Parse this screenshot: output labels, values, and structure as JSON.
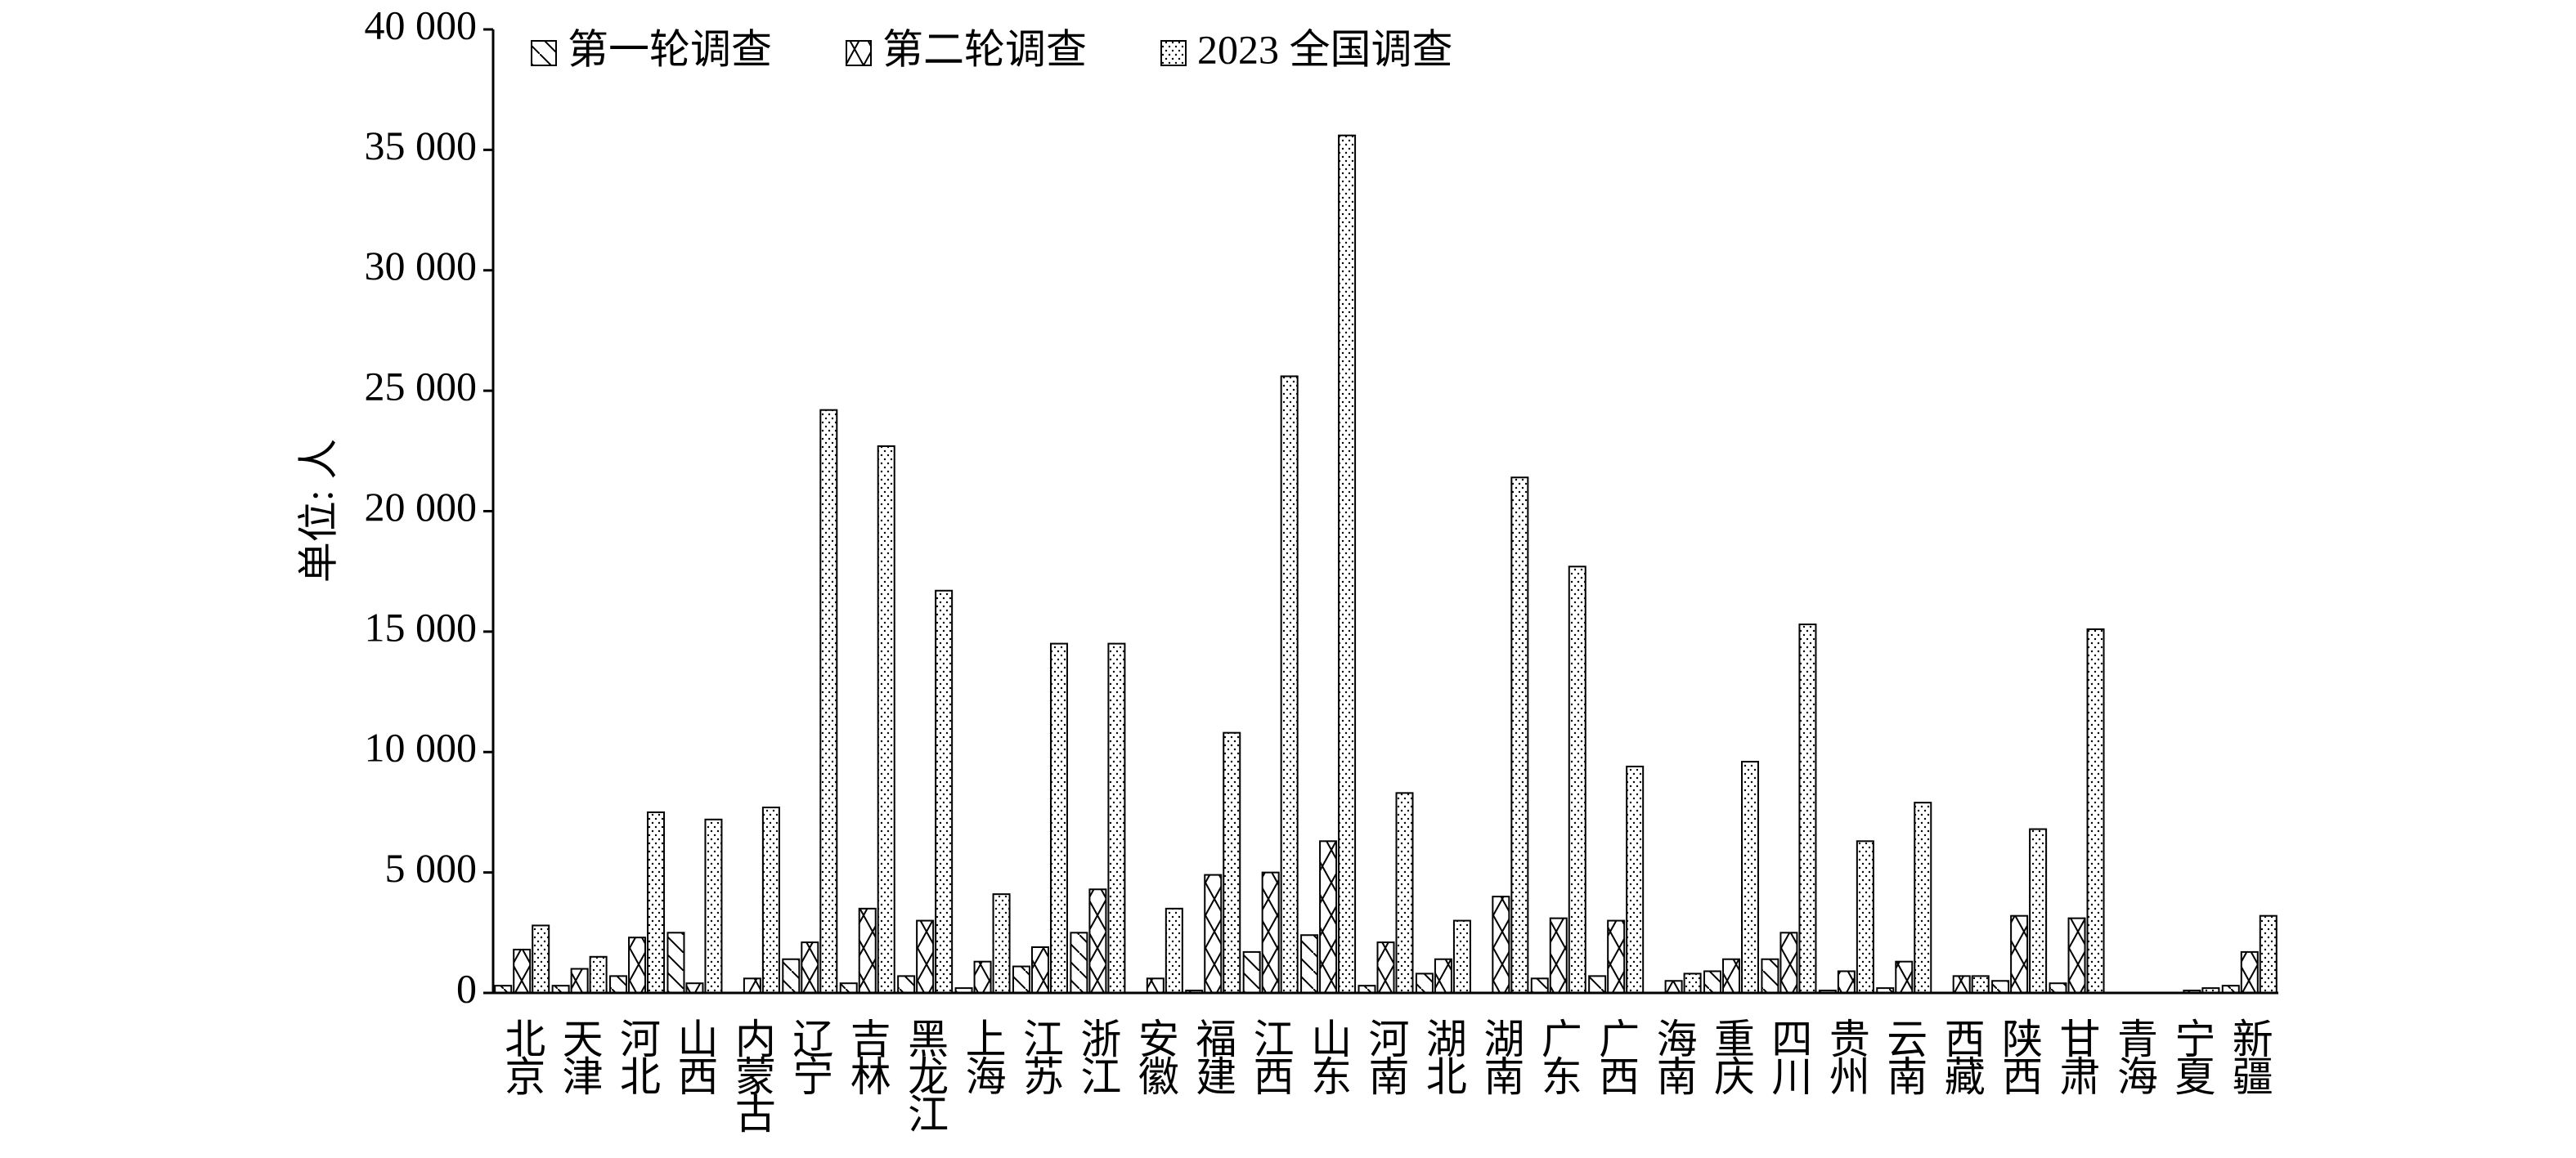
{
  "chart_data": {
    "type": "bar",
    "ylabel": "单位: 人",
    "categories": [
      "北京",
      "天津",
      "河北",
      "山西",
      "内蒙古",
      "辽宁",
      "吉林",
      "黑龙江",
      "上海",
      "江苏",
      "浙江",
      "安徽",
      "福建",
      "江西",
      "山东",
      "河南",
      "湖北",
      "湖南",
      "广东",
      "广西",
      "海南",
      "重庆",
      "四川",
      "贵州",
      "云南",
      "西藏",
      "陕西",
      "甘肃",
      "青海",
      "宁夏",
      "新疆"
    ],
    "series": [
      {
        "name": "第一轮调查",
        "color": "#000000",
        "pattern": "diagonal",
        "values": [
          300,
          300,
          700,
          2500,
          0,
          1400,
          400,
          700,
          200,
          1100,
          2500,
          0,
          100,
          1700,
          2400,
          300,
          800,
          0,
          600,
          700,
          0,
          900,
          1400,
          100,
          200,
          0,
          500,
          400,
          0,
          0,
          300
        ]
      },
      {
        "name": "第二轮调查",
        "color": "#000000",
        "pattern": "cross",
        "values": [
          1800,
          1000,
          2300,
          400,
          600,
          2100,
          3500,
          3000,
          1300,
          1900,
          4300,
          600,
          4900,
          5000,
          6300,
          2100,
          1400,
          4000,
          3100,
          3000,
          500,
          1400,
          2500,
          900,
          1300,
          700,
          3200,
          3100,
          0,
          100,
          1700
        ]
      },
      {
        "name": "2023 全国调查",
        "color": "#000000",
        "pattern": "dots",
        "values": [
          2800,
          1500,
          7500,
          7200,
          7700,
          24200,
          22700,
          16700,
          4100,
          14500,
          14500,
          3500,
          10800,
          25600,
          35600,
          8300,
          3000,
          21400,
          17700,
          9400,
          800,
          9600,
          15300,
          6300,
          7900,
          700,
          6800,
          15100,
          0,
          200,
          3200
        ]
      }
    ],
    "ylim": [
      0,
      40000
    ],
    "yticks": [
      0,
      {
        "value": 5000,
        "label": "5 000"
      },
      {
        "value": 10000,
        "label": "10 000"
      },
      {
        "value": 15000,
        "label": "15 000"
      },
      {
        "value": 20000,
        "label": "20 000"
      },
      {
        "value": 25000,
        "label": "25 000"
      },
      {
        "value": 30000,
        "label": "30 000"
      },
      {
        "value": 35000,
        "label": "35 000"
      },
      {
        "value": 40000,
        "label": "40 000"
      }
    ],
    "grid": false,
    "legend": "top-left"
  }
}
